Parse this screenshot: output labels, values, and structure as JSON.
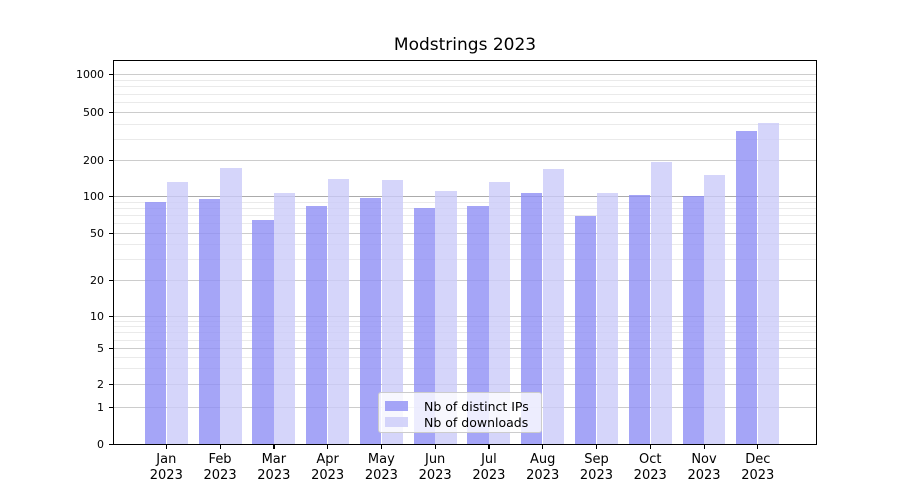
{
  "title": "Modstrings 2023",
  "chart_data": {
    "type": "bar",
    "title": "Modstrings 2023",
    "yscale": "symlog",
    "grid": true,
    "ylim": [
      0,
      1100
    ],
    "y_ticks": [
      0,
      1,
      2,
      5,
      10,
      20,
      50,
      100,
      200,
      500,
      1000
    ],
    "minor_y_gridlines": [
      3,
      4,
      6,
      7,
      8,
      9,
      30,
      40,
      60,
      70,
      80,
      90,
      300,
      400,
      600,
      700,
      800,
      900
    ],
    "months": [
      "Jan",
      "Feb",
      "Mar",
      "Apr",
      "May",
      "Jun",
      "Jul",
      "Aug",
      "Sep",
      "Oct",
      "Nov",
      "Dec"
    ],
    "year_label": "2023",
    "categories": [
      "Jan 2023",
      "Feb 2023",
      "Mar 2023",
      "Apr 2023",
      "May 2023",
      "Jun 2023",
      "Jul 2023",
      "Aug 2023",
      "Sep 2023",
      "Oct 2023",
      "Nov 2023",
      "Dec 2023"
    ],
    "series": [
      {
        "name": "Nb of distinct IPs",
        "key": "distinct-ips",
        "color": "#8f8ff5",
        "values": [
          90,
          95,
          64,
          83,
          96,
          80,
          83,
          106,
          69,
          102,
          100,
          345
        ]
      },
      {
        "name": "Nb of downloads",
        "key": "downloads",
        "color": "#cacaf9",
        "values": [
          130,
          172,
          106,
          139,
          137,
          110,
          131,
          168,
          105,
          191,
          150,
          405
        ]
      }
    ],
    "legend_position": "lower center",
    "colors": {
      "major_grid": "#cccccc",
      "emphasis_grid_at_100": "#ababab",
      "minor_grid": "#eaeaea",
      "axis": "#000000"
    }
  }
}
